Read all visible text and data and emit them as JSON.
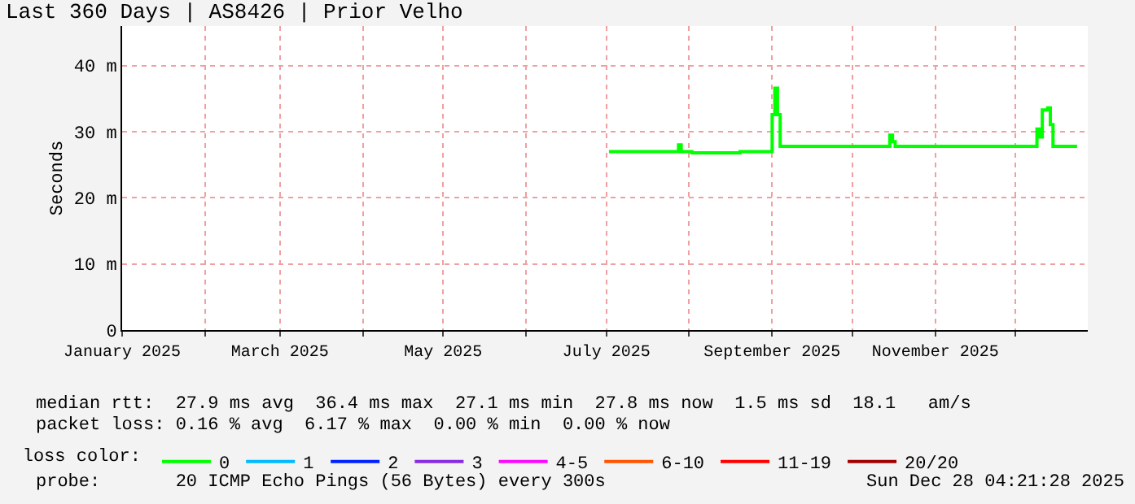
{
  "chart_data": {
    "type": "step",
    "title": "Last 360 Days | AS8426 | Prior Velho",
    "ylabel": "Seconds",
    "legend_title": "loss color:",
    "x": [
      "2025-07-02",
      "2025-07-27",
      "2025-07-28",
      "2025-07-29",
      "2025-08-02",
      "2025-08-20",
      "2025-08-31",
      "2025-09-01",
      "2025-09-02",
      "2025-09-03",
      "2025-09-04",
      "2025-10-14",
      "2025-10-15",
      "2025-10-16",
      "2025-10-17",
      "2025-12-08",
      "2025-12-09",
      "2025-12-10",
      "2025-12-11",
      "2025-12-13",
      "2025-12-14",
      "2025-12-15",
      "2025-12-24"
    ],
    "series": [
      {
        "name": "0",
        "color": "#00ff00",
        "values": [
          27.0,
          27.0,
          28.0,
          27.0,
          26.8,
          27.0,
          27.0,
          32.6,
          36.6,
          32.6,
          27.8,
          27.8,
          29.5,
          28.5,
          27.8,
          27.8,
          30.4,
          29.2,
          33.3,
          33.6,
          31.1,
          27.8,
          27.8
        ]
      },
      {
        "name": "1",
        "color": "#00bbff",
        "values": [
          null,
          null,
          null,
          null,
          null,
          null,
          null,
          null,
          null,
          null,
          null,
          null,
          null,
          null,
          null,
          null,
          null,
          null,
          null,
          null,
          null,
          null,
          null
        ]
      },
      {
        "name": "2",
        "color": "#0022ff",
        "values": [
          null,
          null,
          null,
          null,
          null,
          null,
          null,
          null,
          null,
          null,
          null,
          null,
          null,
          null,
          null,
          null,
          null,
          null,
          null,
          null,
          null,
          null,
          null
        ]
      },
      {
        "name": "3",
        "color": "#8a2be2",
        "values": [
          null,
          null,
          null,
          null,
          null,
          null,
          null,
          null,
          null,
          null,
          null,
          null,
          null,
          null,
          null,
          null,
          null,
          null,
          null,
          null,
          null,
          null,
          null
        ]
      },
      {
        "name": "4-5",
        "color": "#fa0bff",
        "values": [
          null,
          null,
          null,
          null,
          null,
          null,
          null,
          null,
          null,
          null,
          null,
          null,
          null,
          null,
          null,
          null,
          null,
          null,
          null,
          null,
          null,
          null,
          null
        ]
      },
      {
        "name": "6-10",
        "color": "#ff5500",
        "values": [
          null,
          null,
          null,
          null,
          null,
          null,
          null,
          null,
          null,
          null,
          null,
          null,
          null,
          null,
          null,
          null,
          null,
          null,
          null,
          null,
          null,
          null,
          null
        ]
      },
      {
        "name": "11-19",
        "color": "#ff0000",
        "values": [
          null,
          null,
          null,
          null,
          null,
          null,
          null,
          null,
          null,
          null,
          null,
          null,
          null,
          null,
          null,
          null,
          null,
          null,
          null,
          null,
          null,
          null,
          null
        ]
      },
      {
        "name": "20/20",
        "color": "#a10000",
        "values": [
          null,
          null,
          null,
          null,
          null,
          null,
          null,
          null,
          null,
          null,
          null,
          null,
          null,
          null,
          null,
          null,
          null,
          null,
          null,
          null,
          null,
          null,
          null
        ]
      }
    ],
    "xlim": [
      "2025-01-01",
      "2025-12-28"
    ],
    "xticks": [
      {
        "value": "2025-01-01",
        "label": "January 2025"
      },
      {
        "value": "2025-02-01",
        "label": null
      },
      {
        "value": "2025-03-01",
        "label": "March 2025"
      },
      {
        "value": "2025-04-01",
        "label": null
      },
      {
        "value": "2025-05-01",
        "label": "May 2025"
      },
      {
        "value": "2025-06-01",
        "label": null
      },
      {
        "value": "2025-07-01",
        "label": "July 2025"
      },
      {
        "value": "2025-08-01",
        "label": null
      },
      {
        "value": "2025-09-01",
        "label": "September 2025"
      },
      {
        "value": "2025-10-01",
        "label": null
      },
      {
        "value": "2025-11-01",
        "label": "November 2025"
      },
      {
        "value": "2025-12-01",
        "label": null
      }
    ],
    "ylim": [
      0,
      46
    ],
    "yticks": [
      0,
      {
        "value": 10,
        "label": "10 m"
      },
      {
        "value": 20,
        "label": "20 m"
      },
      {
        "value": 30,
        "label": "30 m"
      },
      {
        "value": 40,
        "label": "40 m"
      }
    ],
    "grid": true,
    "legend": "bottom",
    "line_style": "solid",
    "annotations": [
      "median rtt:  27.9 ms avg  36.4 ms max  27.1 ms min  27.8 ms now  1.5 ms sd  18.1   am/s",
      "packet loss: 0.16 % avg  6.17 % max  0.00 % min  0.00 % now",
      "probe:       20 ICMP Echo Pings (56 Bytes) every 300s",
      "Sun Dec 28 04:21:28 2025"
    ]
  }
}
